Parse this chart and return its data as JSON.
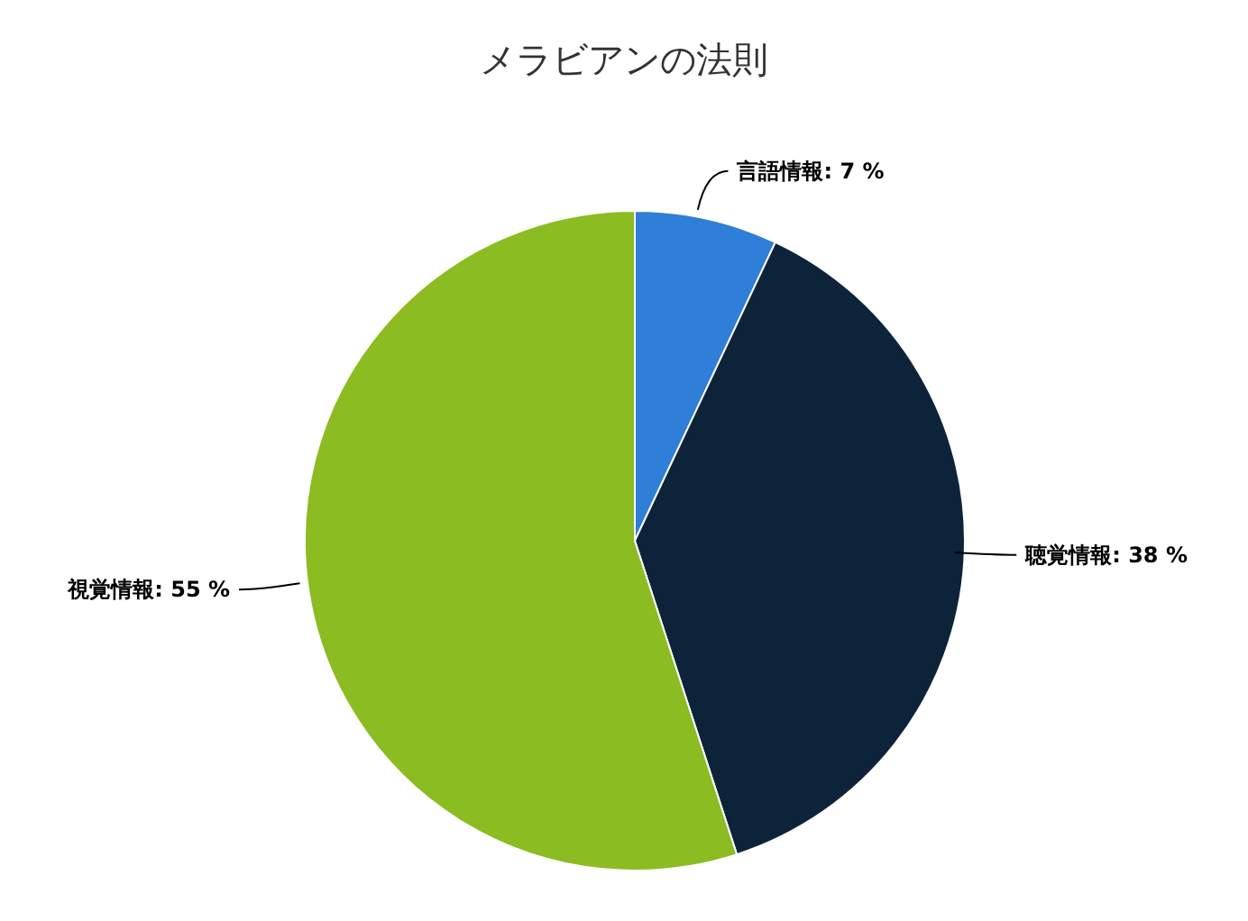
{
  "chart_data": {
    "type": "pie",
    "title": "メラビアンの法則",
    "categories": [
      "言語情報",
      "聴覚情報",
      "視覚情報"
    ],
    "values": [
      7,
      38,
      55
    ],
    "colors": [
      "#2f7ed8",
      "#0d233a",
      "#8bbc21"
    ],
    "value_labels": [
      "7 %",
      "38 %",
      "55 %"
    ],
    "legend": false
  }
}
